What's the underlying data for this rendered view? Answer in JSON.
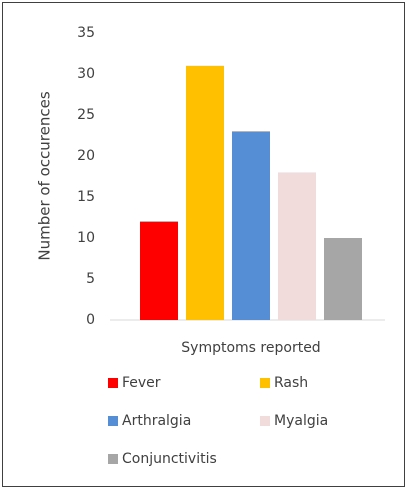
{
  "chart_data": {
    "type": "bar",
    "y_label": "Number of occurences",
    "categories": [
      "Symptoms reported"
    ],
    "series": [
      {
        "name": "Fever",
        "color": "#ff0000",
        "values": [
          12
        ]
      },
      {
        "name": "Rash",
        "color": "#ffc000",
        "values": [
          31
        ]
      },
      {
        "name": "Arthralgia",
        "color": "#558ed5",
        "values": [
          23
        ]
      },
      {
        "name": "Myalgia",
        "color": "#f2dcdb",
        "values": [
          18
        ]
      },
      {
        "name": "Conjunctivitis",
        "color": "#a6a6a6",
        "values": [
          10
        ]
      }
    ],
    "ylim": [
      0,
      35
    ],
    "yticks": [
      0,
      5,
      10,
      15,
      20,
      25,
      30,
      35
    ],
    "grid": false,
    "legend": "bottom"
  }
}
